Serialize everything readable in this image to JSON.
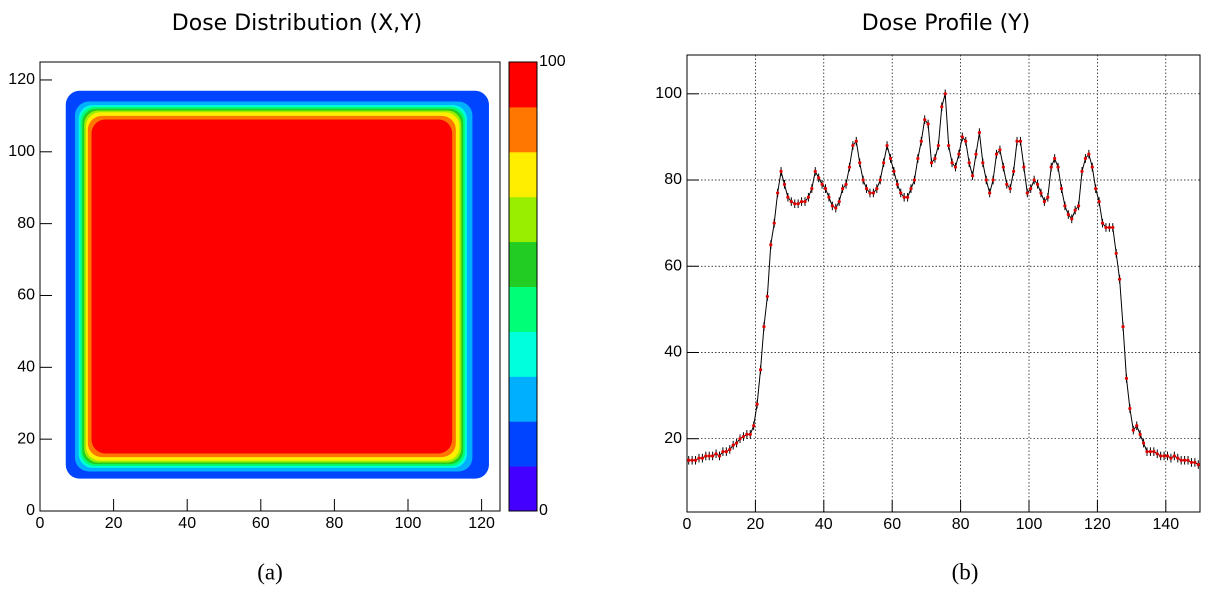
{
  "chart_data": [
    {
      "type": "contour",
      "title": "Dose Distribution (X,Y)",
      "caption": "(a)",
      "xlim": [
        0,
        125
      ],
      "ylim": [
        0,
        125
      ],
      "xticks": [
        0,
        20,
        40,
        60,
        80,
        100,
        120
      ],
      "yticks": [
        0,
        20,
        40,
        60,
        80,
        100,
        120
      ],
      "colorbar": {
        "lim": [
          0,
          100
        ],
        "ticks": [
          0,
          100
        ],
        "colors": [
          "#4400ff",
          "#0044ff",
          "#00b0ff",
          "#00ffdd",
          "#00ff77",
          "#22cc22",
          "#99ee00",
          "#ffee00",
          "#ff7700",
          "#ff0000"
        ]
      },
      "regions": [
        {
          "level": 10,
          "x": [
            7,
            122
          ],
          "y": [
            9,
            117
          ]
        },
        {
          "level": 20,
          "x": [
            9.5,
            117.5
          ],
          "y": [
            11,
            114
          ]
        },
        {
          "level": 30,
          "x": [
            10.5,
            116
          ],
          "y": [
            12,
            113
          ]
        },
        {
          "level": 40,
          "x": [
            11,
            115.5
          ],
          "y": [
            12.5,
            112.5
          ]
        },
        {
          "level": 50,
          "x": [
            11.5,
            115
          ],
          "y": [
            13,
            112
          ]
        },
        {
          "level": 60,
          "x": [
            12,
            114.5
          ],
          "y": [
            13.5,
            111.5
          ]
        },
        {
          "level": 70,
          "x": [
            12.5,
            114
          ],
          "y": [
            14,
            111
          ]
        },
        {
          "level": 80,
          "x": [
            13,
            113
          ],
          "y": [
            15,
            110
          ]
        },
        {
          "level": 90,
          "x": [
            14,
            112
          ],
          "y": [
            16,
            109
          ]
        }
      ]
    },
    {
      "type": "line",
      "title": "Dose Profile (Y)",
      "caption": "(b)",
      "color": "#000000",
      "marker_color": "#e00000",
      "grid": true,
      "xlim": [
        0,
        150
      ],
      "ylim": [
        3,
        109
      ],
      "xticks": [
        0,
        20,
        40,
        60,
        80,
        100,
        120,
        140
      ],
      "yticks": [
        20,
        40,
        60,
        80,
        100
      ],
      "x": [
        0.5,
        1.5,
        2.5,
        3.5,
        4.5,
        5.5,
        6.5,
        7.5,
        8.5,
        9.5,
        10.5,
        11.5,
        12.5,
        13.5,
        14.5,
        15.5,
        16.5,
        17.5,
        18.5,
        19.5,
        20.5,
        21.5,
        22.5,
        23.5,
        24.5,
        25.5,
        26.5,
        27.5,
        28.5,
        29.5,
        30.5,
        31.5,
        32.5,
        33.5,
        34.5,
        35.5,
        36.5,
        37.5,
        38.5,
        39.5,
        40.5,
        41.5,
        42.5,
        43.5,
        44.5,
        45.5,
        46.5,
        47.5,
        48.5,
        49.5,
        50.5,
        51.5,
        52.5,
        53.5,
        54.5,
        55.5,
        56.5,
        57.5,
        58.5,
        59.5,
        60.5,
        61.5,
        62.5,
        63.5,
        64.5,
        65.5,
        66.5,
        67.5,
        68.5,
        69.5,
        70.5,
        71.5,
        72.5,
        73.5,
        74.5,
        75.5,
        76.5,
        77.5,
        78.5,
        79.5,
        80.5,
        81.5,
        82.5,
        83.5,
        84.5,
        85.5,
        86.5,
        87.5,
        88.5,
        89.5,
        90.5,
        91.5,
        92.5,
        93.5,
        94.5,
        95.5,
        96.5,
        97.5,
        98.5,
        99.5,
        100.5,
        101.5,
        102.5,
        103.5,
        104.5,
        105.5,
        106.5,
        107.5,
        108.5,
        109.5,
        110.5,
        111.5,
        112.5,
        113.5,
        114.5,
        115.5,
        116.5,
        117.5,
        118.5,
        119.5,
        120.5,
        121.5,
        122.5,
        123.5,
        124.5,
        125.5,
        126.5,
        127.5,
        128.5,
        129.5,
        130.5,
        131.5,
        132.5,
        133.5,
        134.5,
        135.5,
        136.5,
        137.5,
        138.5,
        139.5,
        140.5,
        141.5,
        142.5,
        143.5,
        144.5,
        145.5,
        146.5,
        147.5,
        148.5,
        149.5
      ],
      "values": [
        15,
        15,
        15,
        15.5,
        15.5,
        16,
        16,
        16,
        16.5,
        16,
        17,
        17,
        17.5,
        18.5,
        19,
        20,
        20.5,
        21,
        21,
        23,
        28,
        36,
        46,
        53,
        65,
        70,
        77,
        82,
        79,
        76,
        75,
        74.5,
        74.5,
        75,
        75,
        76,
        78,
        82,
        80.5,
        79,
        78,
        76,
        74,
        73.5,
        75,
        78,
        79,
        83,
        88,
        89,
        84,
        80,
        78,
        77,
        77,
        78,
        80,
        84,
        88,
        85,
        82,
        79,
        77,
        76,
        76,
        78,
        80,
        85,
        89,
        94,
        93,
        84,
        85,
        88,
        97,
        100,
        88,
        84,
        83,
        86,
        90,
        89,
        84,
        81,
        86,
        91,
        84,
        80,
        77,
        80,
        86,
        87,
        83,
        79,
        78,
        82,
        89,
        89,
        83,
        77,
        78,
        80,
        79,
        77,
        75,
        76,
        83,
        85,
        83,
        78,
        74,
        72,
        71,
        73,
        74,
        82,
        85,
        86,
        83,
        78,
        75,
        70,
        69,
        69,
        69,
        63,
        57,
        46,
        34,
        27,
        22,
        23,
        21,
        19,
        17,
        17,
        17,
        16.5,
        16,
        16,
        16,
        15.5,
        16,
        15.5,
        15,
        15,
        15,
        14.5,
        14.5,
        14
      ],
      "errors": [
        1,
        1,
        1,
        1,
        1,
        1,
        1,
        1,
        1,
        1,
        1,
        1,
        1,
        1,
        1,
        1,
        1,
        1,
        1,
        1,
        1,
        1,
        1,
        1,
        1,
        1,
        1,
        1,
        1,
        1,
        1,
        1,
        1,
        1,
        1,
        1,
        1,
        1,
        1,
        1,
        1,
        1,
        1,
        1,
        1,
        1,
        1,
        1,
        1,
        1,
        1,
        1,
        1,
        1,
        1,
        1,
        1,
        1,
        1,
        1,
        1,
        1,
        1,
        1,
        1,
        1,
        1,
        1,
        1,
        1,
        1,
        1,
        1,
        1,
        1,
        1,
        1,
        1,
        1,
        1,
        1,
        1,
        1,
        1,
        1,
        1,
        1,
        1,
        1,
        1,
        1,
        1,
        1,
        1,
        1,
        1,
        1,
        1,
        1,
        1,
        1,
        1,
        1,
        1,
        1,
        1,
        1,
        1,
        1,
        1,
        1,
        1,
        1,
        1,
        1,
        1,
        1,
        1,
        1,
        1,
        1,
        1,
        1,
        1,
        1,
        1,
        1,
        1,
        1,
        1,
        1,
        1,
        1,
        1,
        1,
        1,
        1,
        1,
        1,
        1,
        1,
        1,
        1,
        1,
        1,
        1,
        1,
        1,
        1,
        1
      ]
    }
  ]
}
